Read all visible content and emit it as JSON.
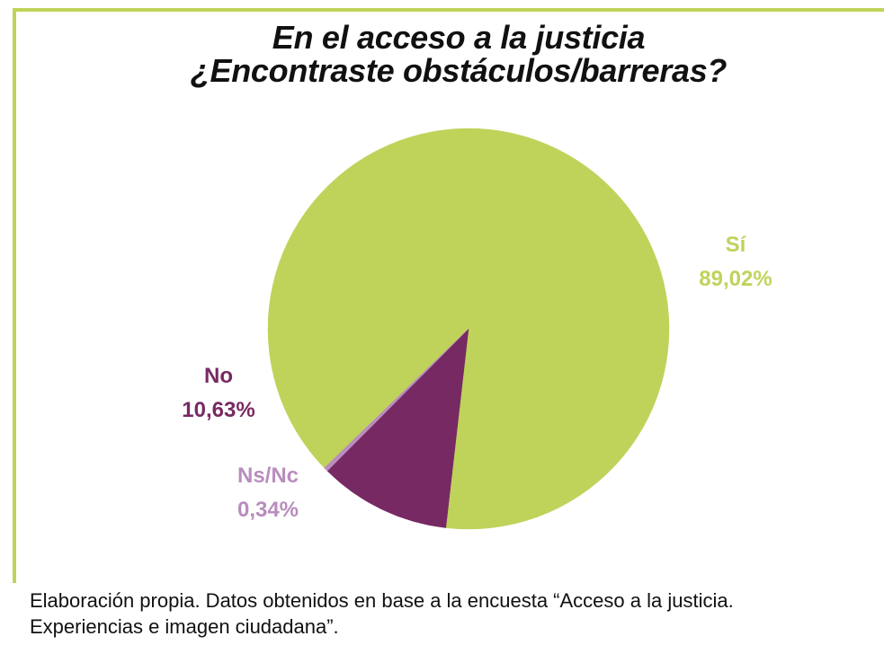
{
  "chart_data": {
    "type": "pie",
    "title": "En el acceso a la justicia ¿Encontraste obstáculos/barreras?",
    "title_lines": [
      "En el acceso a la justicia",
      "¿Encontraste obstáculos/barreras?"
    ],
    "slices": [
      {
        "label": "Sí",
        "value": 89.02,
        "value_label": "89,02%",
        "color": "#bfd35a"
      },
      {
        "label": "No",
        "value": 10.63,
        "value_label": "10,63%",
        "color": "#772963"
      },
      {
        "label": "Ns/Nc",
        "value": 0.34,
        "value_label": "0,34%",
        "color": "#b98dbd"
      }
    ],
    "legend": "none"
  },
  "caption": {
    "line1": "Elaboración propia. Datos obtenidos en base a la encuesta “Acceso a la justicia.",
    "line2": "Experiencias e imagen ciudadana”."
  },
  "colors": {
    "frame": "#bfd35a",
    "background": "#ffffff"
  }
}
